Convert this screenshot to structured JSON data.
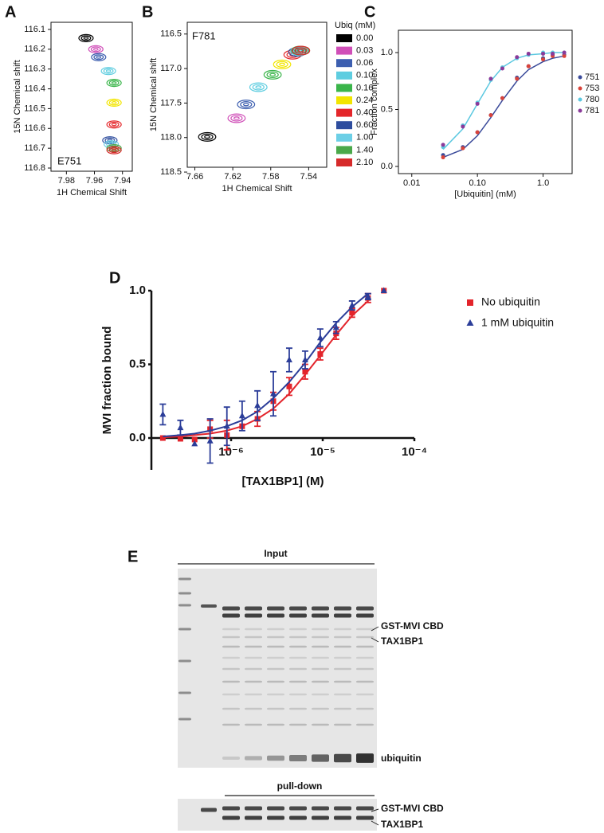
{
  "panel_labels": [
    "A",
    "B",
    "C",
    "D",
    "E"
  ],
  "chart_data": [
    {
      "type": "nmr",
      "annotation": "E751",
      "x_label": "1H Chemical Shift",
      "y_label": "15N Chemical shift",
      "x": [
        7.966,
        7.959,
        7.957,
        7.95,
        7.946,
        7.946,
        7.946,
        7.949,
        7.948,
        7.946,
        7.946
      ],
      "values": [
        116.144,
        116.2,
        116.24,
        116.31,
        116.37,
        116.47,
        116.58,
        116.66,
        116.68,
        116.7,
        116.71
      ],
      "colors": [
        "#000000",
        "#d04fb8",
        "#3d5fb0",
        "#5ecde0",
        "#3ab54a",
        "#f2e500",
        "#e4262a",
        "#2e4d9e",
        "#6ccfe6",
        "#4aa84a",
        "#d62a2a"
      ],
      "xlim": [
        7.991,
        7.933
      ],
      "xticks": [
        7.98,
        7.96,
        7.94
      ],
      "ylim": [
        116.816,
        116.064
      ],
      "yticks": [
        116.1,
        116.2,
        116.3,
        116.4,
        116.5,
        116.6,
        116.7,
        116.8
      ],
      "frame": true
    },
    {
      "type": "nmr",
      "annotation": "F781",
      "x_label": "1H Chemical Shift",
      "y_label": "15N Chemical shift",
      "x": [
        7.647,
        7.616,
        7.606,
        7.593,
        7.578,
        7.568,
        7.557,
        7.552,
        7.55,
        7.549,
        7.548
      ],
      "values": [
        117.99,
        117.72,
        117.52,
        117.27,
        117.09,
        116.94,
        116.8,
        116.76,
        116.75,
        116.74,
        116.74
      ],
      "colors": [
        "#000000",
        "#d04fb8",
        "#3d5fb0",
        "#5ecde0",
        "#3ab54a",
        "#f2e500",
        "#e4262a",
        "#2e4d9e",
        "#6ccfe6",
        "#4aa84a",
        "#d62a2a"
      ],
      "xlim": [
        7.668,
        7.521
      ],
      "xticks": [
        7.66,
        7.62,
        7.58,
        7.54
      ],
      "ylim": [
        118.43,
        116.33
      ],
      "yticks": [
        {
          "value": 116.5,
          "label": "116.5"
        },
        {
          "value": 117,
          "label": "117.0"
        },
        117.5,
        {
          "value": 118,
          "label": "118.0"
        },
        118.5
      ],
      "frame": true,
      "legend": {
        "title": "Ubiq (mM)",
        "labels": [
          "0.00",
          "0.03",
          "0.06",
          "0.10",
          "0.16",
          "0.24",
          "0.40",
          "0.60",
          "1.00",
          "1.40",
          "2.10"
        ]
      }
    },
    {
      "type": "scatter",
      "x_label": "[Ubiquitin] (mM)",
      "y_label": "Fraction complex",
      "xlog": true,
      "frame": true,
      "x": [
        0.03,
        0.06,
        0.1,
        0.16,
        0.24,
        0.4,
        0.6,
        1.0,
        1.4,
        2.1
      ],
      "series": [
        {
          "name": "751",
          "color": "#3a4a9a",
          "values": [
            0.1,
            0.17,
            0.3,
            0.45,
            0.6,
            0.78,
            0.88,
            0.95,
            0.98,
            0.98
          ],
          "fit_values": [
            0.08,
            0.15,
            0.27,
            0.43,
            0.58,
            0.75,
            0.85,
            0.92,
            0.95,
            0.97
          ]
        },
        {
          "name": "753",
          "color": "#d9433a",
          "values": [
            0.08,
            0.16,
            0.3,
            0.45,
            0.6,
            0.77,
            0.88,
            0.94,
            0.97,
            0.97
          ]
        },
        {
          "name": "780",
          "color": "#5bc8e0",
          "values": [
            0.17,
            0.36,
            0.56,
            0.76,
            0.87,
            0.95,
            0.98,
            1.0,
            1.0,
            1.0
          ],
          "fit_values": [
            0.15,
            0.33,
            0.55,
            0.75,
            0.87,
            0.95,
            0.98,
            0.99,
            1.0,
            1.0
          ]
        },
        {
          "name": "781",
          "color": "#8a3a9a",
          "values": [
            0.19,
            0.35,
            0.55,
            0.77,
            0.86,
            0.96,
            0.99,
            0.99,
            0.99,
            1.0
          ]
        }
      ],
      "xlim": [
        0.00626,
        2.77
      ],
      "xticks": [
        0.01,
        {
          "value": 0.1,
          "label": "0.10"
        },
        {
          "value": 1,
          "label": "1.0"
        }
      ],
      "ylim": [
        -0.063,
        1.196
      ],
      "yticks": [
        {
          "value": 0,
          "label": "0.0"
        },
        {
          "value": 0.5,
          "label": "0.5"
        },
        {
          "value": 1,
          "label": "1.0"
        }
      ]
    },
    {
      "type": "errorscatter",
      "x_label": "[TAX1BP1] (M)",
      "y_label": "MVI fraction bound",
      "xlog": true,
      "frame": false,
      "x": [
        1.8e-07,
        2.8e-07,
        4e-07,
        5.9e-07,
        9e-07,
        1.32e-06,
        1.94e-06,
        2.89e-06,
        4.31e-06,
        6.43e-06,
        9.4e-06,
        1.4e-05,
        2.09e-05,
        3.12e-05,
        4.65e-05
      ],
      "series": [
        {
          "name": "No ubiquitin",
          "color": "#e3242b",
          "marker": "square",
          "values": [
            0.0,
            -0.005,
            -0.01,
            0.06,
            0.02,
            0.08,
            0.13,
            0.25,
            0.35,
            0.45,
            0.57,
            0.71,
            0.85,
            0.95,
            1.0
          ],
          "errors": [
            0,
            0,
            0,
            0.06,
            0.1,
            0,
            0.05,
            0.06,
            0.06,
            0.05,
            0.04,
            0.04,
            0.03,
            0.03,
            0
          ],
          "fit_values": [
            0.005,
            0.01,
            0.02,
            0.03,
            0.05,
            0.08,
            0.13,
            0.2,
            0.3,
            0.43,
            0.56,
            0.7,
            0.83,
            0.93,
            null
          ]
        },
        {
          "name": "1 mM ubiquitin",
          "color": "#2b3d99",
          "marker": "triangle",
          "values": [
            0.16,
            0.07,
            -0.04,
            -0.02,
            0.08,
            0.15,
            0.22,
            0.3,
            0.53,
            0.53,
            0.68,
            0.75,
            0.9,
            0.96,
            1.0
          ],
          "errors": [
            0.07,
            0.05,
            0,
            0.15,
            0.13,
            0.1,
            0.1,
            0.15,
            0.08,
            0.06,
            0.06,
            0.04,
            0.03,
            0.02,
            0
          ],
          "fit_values": [
            0.01,
            0.02,
            0.03,
            0.05,
            0.08,
            0.12,
            0.18,
            0.27,
            0.38,
            0.51,
            0.65,
            0.78,
            0.89,
            0.98,
            null
          ]
        }
      ],
      "xlim": [
        1.35e-07,
        0.0001
      ],
      "xticks": [
        {
          "value": 1e-06,
          "label": "10⁻⁶"
        },
        {
          "value": 1e-05,
          "label": "10⁻⁵"
        },
        {
          "value": 0.0001,
          "label": "10⁻⁴"
        }
      ],
      "ylim": [
        -0.216,
        1.0
      ],
      "yticks": [
        {
          "value": 0,
          "label": "0.0"
        },
        {
          "value": 0.5,
          "label": "0.5"
        },
        {
          "value": 1,
          "label": "1.0"
        }
      ]
    }
  ],
  "gel": {
    "input": "Input",
    "pulldown": "pull-down",
    "input_labels": [
      "GST-MVI CBD",
      "TAX1BP1",
      "ubiquitin"
    ],
    "pulldown_labels": [
      "GST-MVI CBD",
      "TAX1BP1"
    ]
  }
}
